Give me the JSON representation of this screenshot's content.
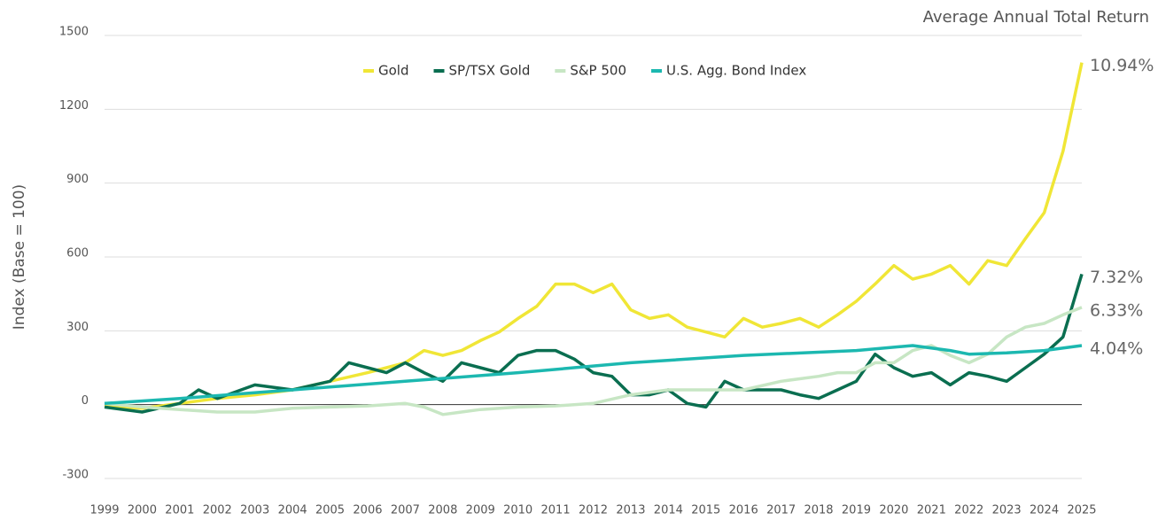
{
  "chart_data": {
    "type": "line",
    "title": "Average Annual Total Return",
    "y_label": "Index (Base = 100)",
    "xlim": [
      1999,
      2025
    ],
    "xticks": [
      1999,
      2000,
      2001,
      2002,
      2003,
      2004,
      2005,
      2006,
      2007,
      2008,
      2009,
      2010,
      2011,
      2012,
      2013,
      2014,
      2015,
      2016,
      2017,
      2018,
      2019,
      2020,
      2021,
      2022,
      2023,
      2024,
      2025
    ],
    "ylim": [
      -300,
      1500
    ],
    "yticks": [
      -300,
      0,
      300,
      600,
      900,
      1200,
      1500
    ],
    "grid": true,
    "series": [
      {
        "name": "Gold",
        "color": "#f0e636",
        "end_label": "10.94%",
        "x": [
          1999,
          2000,
          2001,
          2002,
          2003,
          2004,
          2005,
          2006,
          2006.5,
          2007,
          2007.5,
          2008,
          2008.5,
          2009,
          2009.5,
          2010,
          2010.5,
          2011,
          2011.5,
          2012,
          2012.5,
          2013,
          2013.5,
          2014,
          2014.5,
          2015,
          2015.5,
          2016,
          2016.5,
          2017,
          2017.5,
          2018,
          2018.5,
          2019,
          2019.5,
          2020,
          2020.5,
          2021,
          2021.5,
          2022,
          2022.5,
          2023,
          2023.5,
          2024,
          2024.5,
          2025
        ],
        "values": [
          -5,
          -15,
          5,
          25,
          40,
          60,
          95,
          130,
          150,
          170,
          220,
          200,
          220,
          260,
          295,
          350,
          400,
          490,
          490,
          455,
          490,
          385,
          350,
          365,
          315,
          295,
          275,
          350,
          315,
          330,
          350,
          315,
          365,
          420,
          490,
          565,
          510,
          530,
          565,
          490,
          585,
          565,
          675,
          780,
          1030,
          1390
        ]
      },
      {
        "name": "SP/TSX Gold",
        "color": "#0a6e50",
        "end_label": "7.32%",
        "x": [
          1999,
          2000,
          2001,
          2001.5,
          2002,
          2003,
          2004,
          2005,
          2005.5,
          2006,
          2006.5,
          2007,
          2007.5,
          2008,
          2008.5,
          2009,
          2009.5,
          2010,
          2010.5,
          2011,
          2011.5,
          2012,
          2012.5,
          2013,
          2013.5,
          2014,
          2014.5,
          2015,
          2015.5,
          2016,
          2016.5,
          2017,
          2017.5,
          2018,
          2018.5,
          2019,
          2019.5,
          2020,
          2020.5,
          2021,
          2021.5,
          2022,
          2022.5,
          2023,
          2023.5,
          2024,
          2024.5,
          2025
        ],
        "values": [
          -10,
          -30,
          5,
          60,
          25,
          80,
          60,
          95,
          170,
          150,
          130,
          170,
          130,
          95,
          170,
          150,
          130,
          200,
          220,
          220,
          185,
          130,
          115,
          40,
          40,
          60,
          5,
          -10,
          95,
          60,
          60,
          60,
          40,
          25,
          60,
          95,
          205,
          150,
          115,
          130,
          80,
          130,
          115,
          95,
          150,
          205,
          275,
          530
        ]
      },
      {
        "name": "S&P 500",
        "color": "#c7e6c4",
        "end_label": "6.33%",
        "x": [
          1999,
          2000,
          2001,
          2002,
          2003,
          2004,
          2005,
          2006,
          2007,
          2007.5,
          2008,
          2008.5,
          2009,
          2010,
          2011,
          2012,
          2013,
          2014,
          2015,
          2016,
          2017,
          2018,
          2018.5,
          2019,
          2019.5,
          2020,
          2020.5,
          2021,
          2021.5,
          2022,
          2022.5,
          2023,
          2023.5,
          2024,
          2024.5,
          2025
        ],
        "values": [
          5,
          -10,
          -20,
          -30,
          -30,
          -15,
          -10,
          -5,
          5,
          -10,
          -40,
          -30,
          -20,
          -10,
          -5,
          5,
          40,
          60,
          60,
          60,
          95,
          115,
          130,
          130,
          170,
          170,
          220,
          240,
          200,
          170,
          205,
          275,
          315,
          330,
          365,
          395
        ]
      },
      {
        "name": "U.S. Agg. Bond Index",
        "color": "#1cb8b0",
        "end_label": "4.04%",
        "x": [
          1999,
          2001,
          2004,
          2007,
          2010,
          2013,
          2016,
          2019,
          2020.5,
          2021.5,
          2022,
          2023,
          2024,
          2025
        ],
        "values": [
          5,
          25,
          60,
          95,
          130,
          170,
          200,
          220,
          240,
          220,
          205,
          210,
          220,
          240
        ]
      }
    ]
  }
}
